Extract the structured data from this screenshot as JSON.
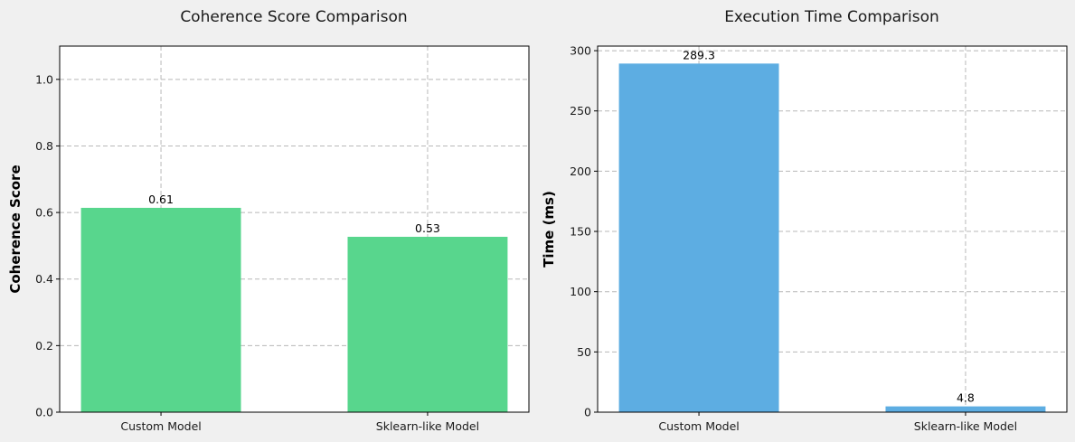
{
  "chart_data": [
    {
      "type": "bar",
      "title": "Coherence Score Comparison",
      "xlabel": "",
      "ylabel": "Coherence Score",
      "categories": [
        "Custom Model",
        "Sklearn-like Model"
      ],
      "values": [
        0.614,
        0.527
      ],
      "data_labels": [
        "0.61",
        "0.53"
      ],
      "ylim": [
        0,
        1.1
      ],
      "yticks": [
        0.0,
        0.2,
        0.4,
        0.6,
        0.8,
        1.0
      ],
      "ytick_labels": [
        "0.0",
        "0.2",
        "0.4",
        "0.6",
        "0.8",
        "1.0"
      ],
      "grid": true,
      "color": "#58d68d"
    },
    {
      "type": "bar",
      "title": "Execution Time Comparison",
      "xlabel": "",
      "ylabel": "Time (ms)",
      "categories": [
        "Custom Model",
        "Sklearn-like Model"
      ],
      "values": [
        289.3,
        4.8
      ],
      "data_labels": [
        "289.3",
        "4.8"
      ],
      "ylim": [
        0,
        303.8
      ],
      "yticks": [
        0,
        50,
        100,
        150,
        200,
        250,
        300
      ],
      "ytick_labels": [
        "0",
        "50",
        "100",
        "150",
        "200",
        "250",
        "300"
      ],
      "grid": true,
      "color": "#5dade2"
    }
  ]
}
